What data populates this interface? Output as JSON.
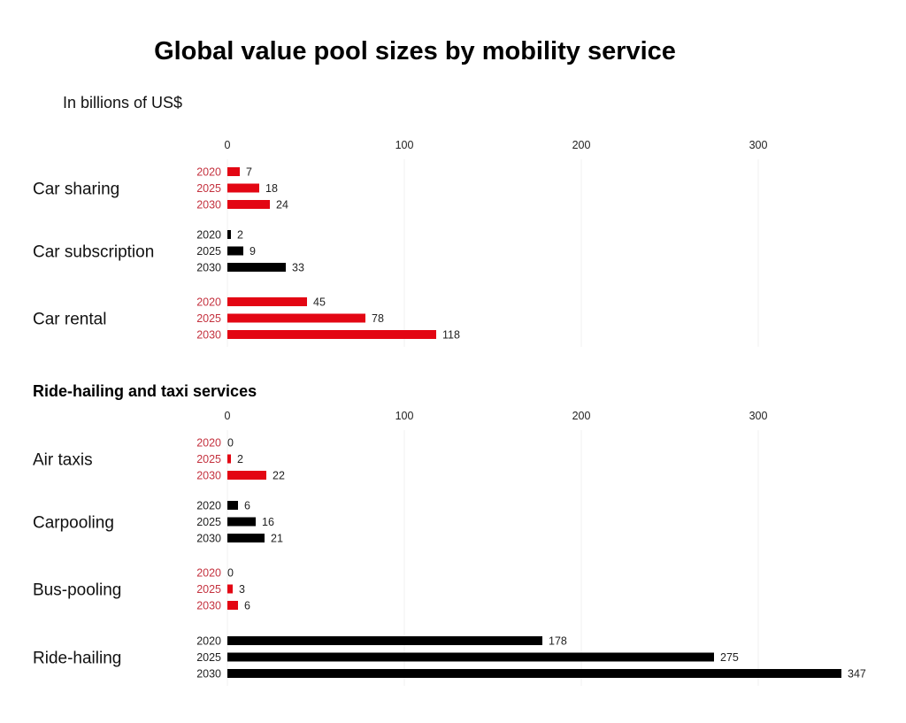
{
  "chart_data": {
    "type": "bar",
    "orientation": "horizontal",
    "title": "Global value pool sizes by mobility service",
    "subtitle": "In billions of US$",
    "xlim": [
      0,
      340
    ],
    "ticks": [
      0,
      100,
      200,
      300
    ],
    "grid": true,
    "colors": {
      "red": "#e30613",
      "black": "#000000",
      "red_label": "#c4323f",
      "black_label": "#222222"
    },
    "panels": [
      {
        "heading": "",
        "groups": [
          {
            "category": "Car sharing",
            "color": "red",
            "bars": [
              {
                "year": "2020",
                "value": 7
              },
              {
                "year": "2025",
                "value": 18
              },
              {
                "year": "2030",
                "value": 24
              }
            ]
          },
          {
            "category": "Car subscription",
            "color": "black",
            "bars": [
              {
                "year": "2020",
                "value": 2
              },
              {
                "year": "2025",
                "value": 9
              },
              {
                "year": "2030",
                "value": 33
              }
            ]
          },
          {
            "category": "Car rental",
            "color": "red",
            "bars": [
              {
                "year": "2020",
                "value": 45
              },
              {
                "year": "2025",
                "value": 78
              },
              {
                "year": "2030",
                "value": 118
              }
            ]
          }
        ]
      },
      {
        "heading": "Ride-hailing and taxi services",
        "groups": [
          {
            "category": "Air taxis",
            "color": "red",
            "bars": [
              {
                "year": "2020",
                "value": 0
              },
              {
                "year": "2025",
                "value": 2
              },
              {
                "year": "2030",
                "value": 22
              }
            ]
          },
          {
            "category": "Carpooling",
            "color": "black",
            "bars": [
              {
                "year": "2020",
                "value": 6
              },
              {
                "year": "2025",
                "value": 16
              },
              {
                "year": "2030",
                "value": 21
              }
            ]
          },
          {
            "category": "Bus-pooling",
            "color": "red",
            "bars": [
              {
                "year": "2020",
                "value": 0
              },
              {
                "year": "2025",
                "value": 3
              },
              {
                "year": "2030",
                "value": 6
              }
            ]
          },
          {
            "category": "Ride-hailing",
            "color": "black",
            "bars": [
              {
                "year": "2020",
                "value": 178
              },
              {
                "year": "2025",
                "value": 275
              },
              {
                "year": "2030",
                "value": 347
              }
            ]
          }
        ]
      }
    ]
  }
}
